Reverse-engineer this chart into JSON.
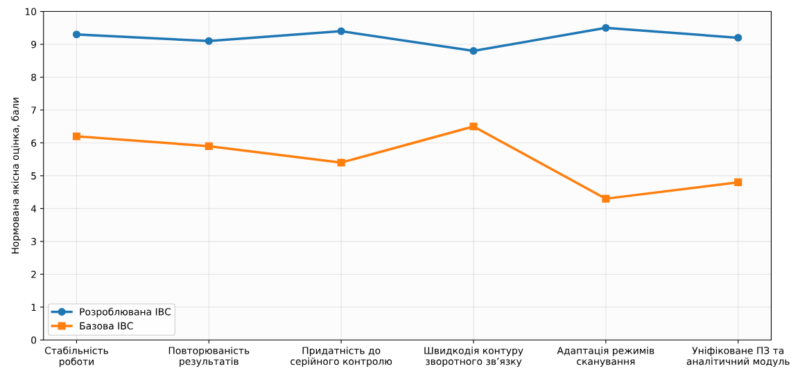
{
  "chart_data": {
    "type": "line",
    "ylabel": "Нормована якісна оцінка, бали",
    "categories": [
      "Стабільність\nроботи",
      "Повторюваність\nрезультатів",
      "Придатність до\nсерійного контролю",
      "Швидкодія контуру\nзворотного зв’язку",
      "Адаптація режимів\nсканування",
      "Уніфіковане ПЗ та\nаналітичний модуль"
    ],
    "series": [
      {
        "name": "Розроблювана ІВС",
        "color": "#1f77b4",
        "marker": "circle",
        "values": [
          9.3,
          9.1,
          9.4,
          8.8,
          9.5,
          9.2
        ]
      },
      {
        "name": "Базова ІВС",
        "color": "#ff7f0e",
        "marker": "square",
        "values": [
          6.2,
          5.9,
          5.4,
          6.5,
          4.3,
          4.8
        ]
      }
    ],
    "ylim": [
      0,
      10
    ],
    "yticks": [
      0,
      1,
      2,
      3,
      4,
      5,
      6,
      7,
      8,
      9,
      10
    ],
    "grid": true,
    "legend": "bottom left",
    "line_style": "solid"
  }
}
